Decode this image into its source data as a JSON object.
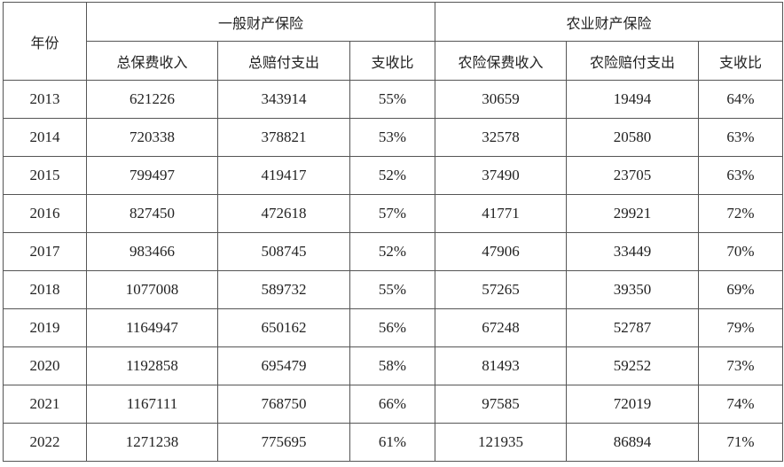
{
  "table": {
    "year_header": "年份",
    "groups": [
      "一般财产保险",
      "农业财产保险"
    ],
    "columns": [
      "总保费收入",
      "总赔付支出",
      "支收比",
      "农险保费收入",
      "农险赔付支出",
      "支收比"
    ],
    "rows": [
      [
        "2013",
        "621226",
        "343914",
        "55%",
        "30659",
        "19494",
        "64%"
      ],
      [
        "2014",
        "720338",
        "378821",
        "53%",
        "32578",
        "20580",
        "63%"
      ],
      [
        "2015",
        "799497",
        "419417",
        "52%",
        "37490",
        "23705",
        "63%"
      ],
      [
        "2016",
        "827450",
        "472618",
        "57%",
        "41771",
        "29921",
        "72%"
      ],
      [
        "2017",
        "983466",
        "508745",
        "52%",
        "47906",
        "33449",
        "70%"
      ],
      [
        "2018",
        "1077008",
        "589732",
        "55%",
        "57265",
        "39350",
        "69%"
      ],
      [
        "2019",
        "1164947",
        "650162",
        "56%",
        "67248",
        "52787",
        "79%"
      ],
      [
        "2020",
        "1192858",
        "695479",
        "58%",
        "81493",
        "59252",
        "73%"
      ],
      [
        "2021",
        "1167111",
        "768750",
        "66%",
        "97585",
        "72019",
        "74%"
      ],
      [
        "2022",
        "1271238",
        "775695",
        "61%",
        "121935",
        "86894",
        "71%"
      ]
    ]
  }
}
